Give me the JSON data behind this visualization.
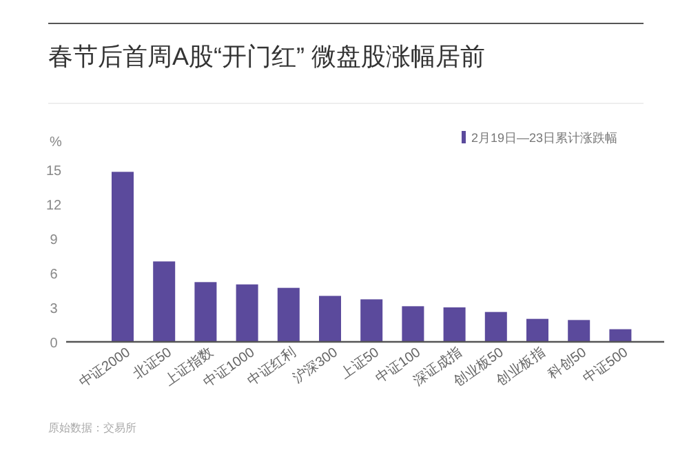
{
  "chart_data": {
    "type": "bar",
    "title": "春节后首周A股“开门红” 微盘股涨幅居前",
    "ylabel": "%",
    "categories": [
      "中证2000",
      "北证50",
      "上证指数",
      "中证1000",
      "中证红利",
      "沪深300",
      "上证50",
      "中证100",
      "深证成指",
      "创业板50",
      "创业板指",
      "科创50",
      "中证500"
    ],
    "series": [
      {
        "name": "2月19日—23日累计涨跌幅",
        "color": "#5b4a9c",
        "values": [
          14.8,
          7.0,
          5.2,
          5.0,
          4.7,
          4.0,
          3.7,
          3.1,
          3.0,
          2.6,
          2.0,
          1.9,
          1.1
        ]
      }
    ],
    "ylim": [
      0,
      15
    ],
    "yticks": [
      0,
      3,
      6,
      9,
      12,
      15
    ],
    "grid": false,
    "legend": "top right",
    "annotations": [
      "原始数据：交易所"
    ]
  }
}
